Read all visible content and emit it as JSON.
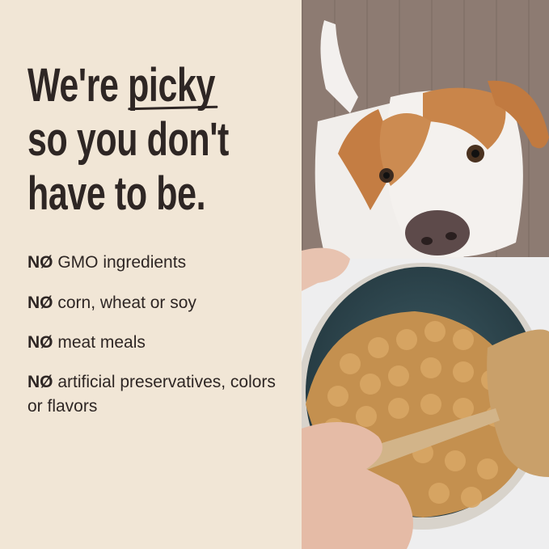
{
  "headline": {
    "line1_before": "We're ",
    "line1_emphasis": "picky",
    "line2": "so you don't",
    "line3": "have to be."
  },
  "bullets": [
    {
      "prefix": "NØ",
      "text": "GMO ingredients"
    },
    {
      "prefix": "NØ",
      "text": "corn, wheat or soy"
    },
    {
      "prefix": "NØ",
      "text": "meat meals"
    },
    {
      "prefix": "NØ",
      "text": "artificial preservatives, colors or flavors"
    }
  ],
  "colors": {
    "background": "#f1e6d6",
    "text": "#2e2624"
  }
}
